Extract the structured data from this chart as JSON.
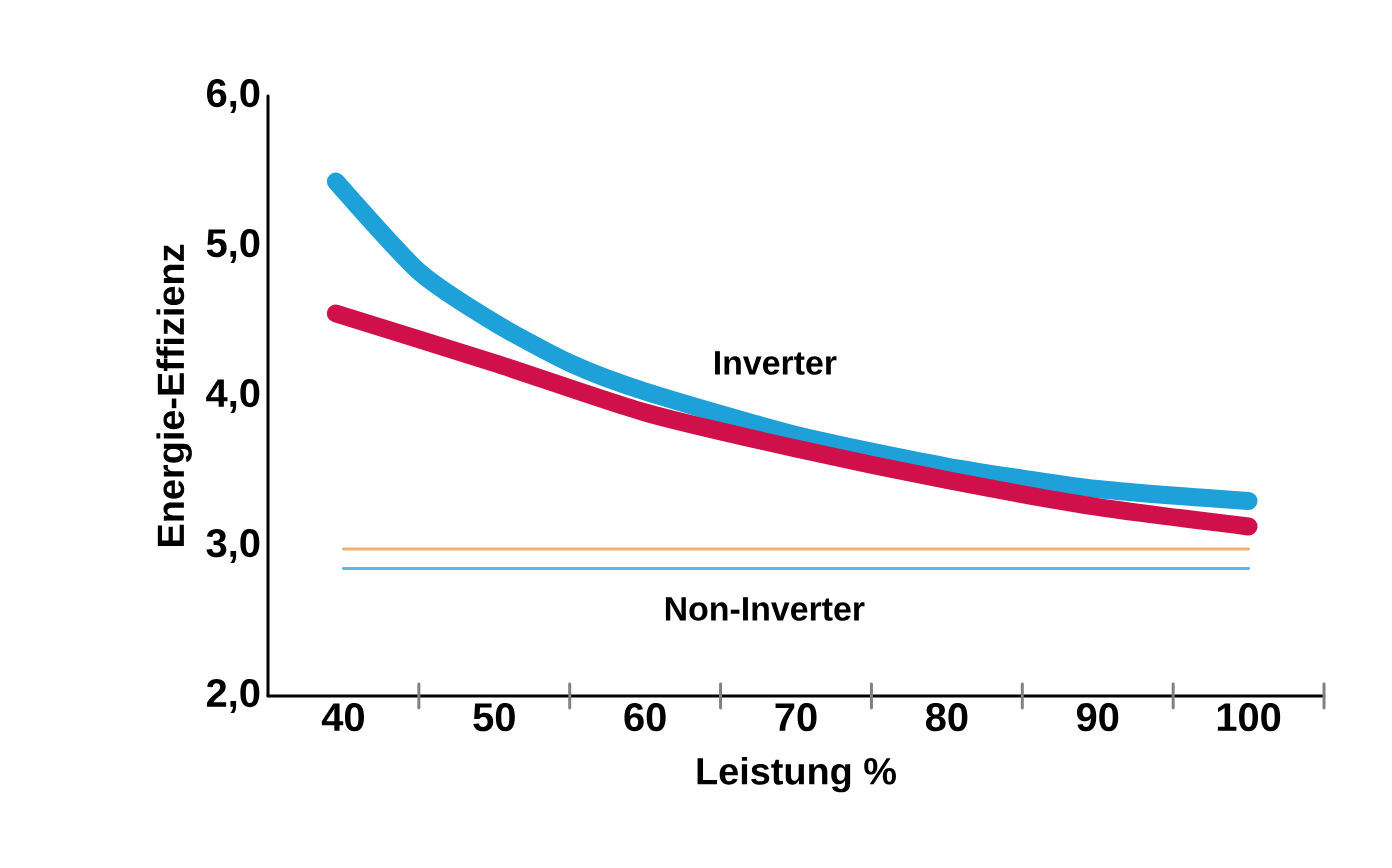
{
  "chart_data": {
    "type": "line",
    "xlabel": "Leistung %",
    "ylabel": "Energie-Effizienz",
    "xlim": [
      35,
      105
    ],
    "ylim": [
      2,
      6
    ],
    "xticks": [
      40,
      50,
      60,
      70,
      80,
      90,
      100,
      {
        "value": 45,
        "label": null
      },
      {
        "value": 55,
        "label": null
      },
      {
        "value": 65,
        "label": null
      },
      {
        "value": 75,
        "label": null
      },
      {
        "value": 85,
        "label": null
      },
      {
        "value": 95,
        "label": null
      },
      {
        "value": 105,
        "label": null
      }
    ],
    "yticks": [
      {
        "value": 2,
        "label": "2,0"
      },
      {
        "value": 3,
        "label": "3,0"
      },
      {
        "value": 4,
        "label": "4,0"
      },
      {
        "value": 5,
        "label": "5,0"
      },
      {
        "value": 6,
        "label": "6,0"
      }
    ],
    "series": [
      {
        "color": "#1ea0d8",
        "x": [
          39.5,
          45,
          50,
          55,
          60,
          70,
          80,
          90,
          100
        ],
        "values": [
          5.43,
          4.83,
          4.49,
          4.22,
          4.03,
          3.74,
          3.53,
          3.38,
          3.3
        ]
      },
      {
        "color": "#d0104a",
        "x": [
          39.5,
          50,
          60,
          70,
          80,
          90,
          100
        ],
        "values": [
          4.55,
          4.22,
          3.89,
          3.65,
          3.44,
          3.26,
          3.13
        ]
      },
      {
        "color": "#f0b070",
        "x": [
          40,
          100
        ],
        "values": [
          2.98,
          2.98
        ]
      },
      {
        "color": "#5bb8e0",
        "x": [
          40,
          100
        ],
        "values": [
          2.85,
          2.85
        ]
      }
    ],
    "annotations": [
      "Inverter",
      "Non-Inverter"
    ]
  }
}
